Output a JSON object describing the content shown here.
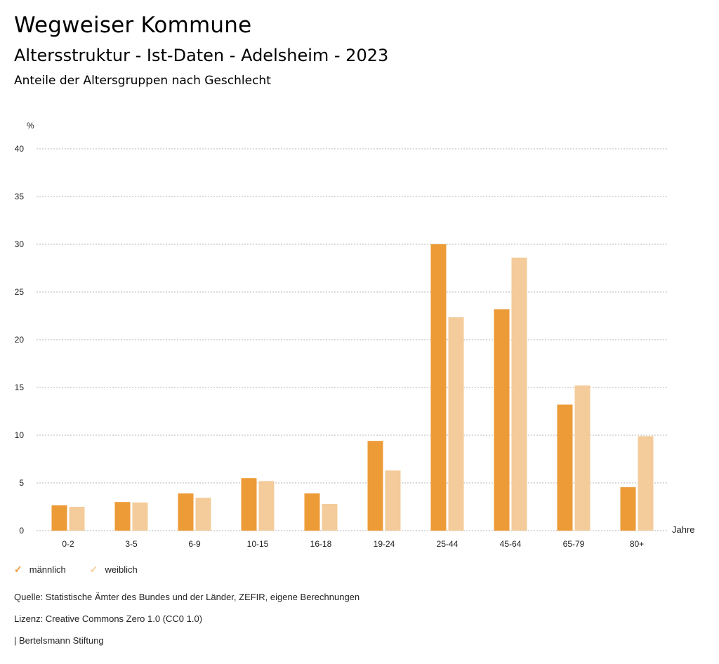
{
  "header": {
    "title": "Wegweiser Kommune",
    "subtitle": "Altersstruktur - Ist-Daten - Adelsheim - 2023",
    "chart_subtitle": "Anteile der Altersgruppen nach Geschlecht"
  },
  "chart_data": {
    "type": "bar",
    "title": "Anteile der Altersgruppen nach Geschlecht",
    "xlabel": "Jahre",
    "ylabel": "%",
    "ylim": [
      0,
      40
    ],
    "yticks": [
      0,
      5,
      10,
      15,
      20,
      25,
      30,
      35,
      40
    ],
    "grid": true,
    "legend_position": "bottom-left",
    "categories": [
      "0-2",
      "3-5",
      "6-9",
      "10-15",
      "16-18",
      "19-24",
      "25-44",
      "45-64",
      "65-79",
      "80+"
    ],
    "series": [
      {
        "name": "männlich",
        "color": "#ed9b37",
        "values": [
          2.65,
          3.0,
          3.9,
          5.5,
          3.9,
          9.4,
          30.0,
          23.2,
          13.2,
          4.55
        ]
      },
      {
        "name": "weiblich",
        "color": "#f4cb9a",
        "values": [
          2.5,
          2.95,
          3.45,
          5.2,
          2.8,
          6.3,
          22.35,
          28.6,
          15.2,
          9.9
        ]
      }
    ]
  },
  "legend": {
    "items": [
      {
        "label": "männlich",
        "color": "#ed9b37",
        "icon": "check-icon"
      },
      {
        "label": "weiblich",
        "color": "#f4cb9a",
        "icon": "check-icon"
      }
    ]
  },
  "footer": {
    "source": "Quelle: Statistische Ämter des Bundes und der Länder, ZEFIR, eigene Berechnungen",
    "license": "Lizenz: Creative Commons Zero 1.0 (CC0 1.0)",
    "publisher": "| Bertelsmann Stiftung"
  }
}
